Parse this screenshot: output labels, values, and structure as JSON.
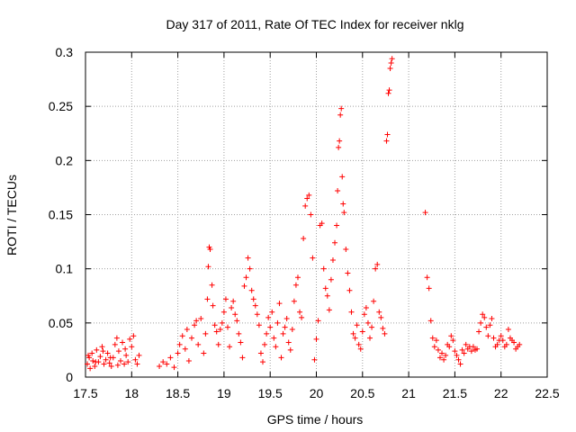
{
  "chart_data": {
    "type": "scatter",
    "title": "Day 317 of 2011, Rate Of TEC Index for receiver nklg",
    "xlabel": "GPS time / hours",
    "ylabel": "ROTI / TECUs",
    "xlim": [
      17.5,
      22.5
    ],
    "ylim": [
      0,
      0.3
    ],
    "xticks": [
      "17.5",
      "18",
      "18.5",
      "19",
      "19.5",
      "20",
      "20.5",
      "21",
      "21.5",
      "22",
      "22.5"
    ],
    "yticks": [
      "0",
      "0.05",
      "0.1",
      "0.15",
      "0.2",
      "0.25",
      "0.3"
    ],
    "grid": true,
    "marker": "+",
    "color": "#ff0000",
    "series": [
      {
        "name": "ROTI",
        "points": [
          [
            17.52,
            0.012
          ],
          [
            17.54,
            0.018
          ],
          [
            17.55,
            0.008
          ],
          [
            17.57,
            0.022
          ],
          [
            17.58,
            0.015
          ],
          [
            17.6,
            0.01
          ],
          [
            17.62,
            0.025
          ],
          [
            17.64,
            0.014
          ],
          [
            17.66,
            0.019
          ],
          [
            17.68,
            0.028
          ],
          [
            17.7,
            0.012
          ],
          [
            17.72,
            0.016
          ],
          [
            17.74,
            0.022
          ],
          [
            17.76,
            0.013
          ],
          [
            17.78,
            0.01
          ],
          [
            17.8,
            0.018
          ],
          [
            17.82,
            0.03
          ],
          [
            17.84,
            0.036
          ],
          [
            17.86,
            0.024
          ],
          [
            17.88,
            0.015
          ],
          [
            17.9,
            0.032
          ],
          [
            17.92,
            0.012
          ],
          [
            17.94,
            0.02
          ],
          [
            17.96,
            0.014
          ],
          [
            17.98,
            0.035
          ],
          [
            18.0,
            0.028
          ],
          [
            18.02,
            0.038
          ],
          [
            18.04,
            0.016
          ],
          [
            18.06,
            0.012
          ],
          [
            18.08,
            0.02
          ],
          [
            17.53,
            0.02
          ],
          [
            17.61,
            0.014
          ],
          [
            17.69,
            0.024
          ],
          [
            17.77,
            0.018
          ],
          [
            17.85,
            0.011
          ],
          [
            17.93,
            0.026
          ],
          [
            18.3,
            0.01
          ],
          [
            18.34,
            0.014
          ],
          [
            18.38,
            0.012
          ],
          [
            18.42,
            0.018
          ],
          [
            18.46,
            0.009
          ],
          [
            18.5,
            0.022
          ],
          [
            18.52,
            0.03
          ],
          [
            18.55,
            0.038
          ],
          [
            18.58,
            0.026
          ],
          [
            18.6,
            0.044
          ],
          [
            18.62,
            0.015
          ],
          [
            18.65,
            0.036
          ],
          [
            18.68,
            0.048
          ],
          [
            18.7,
            0.052
          ],
          [
            18.72,
            0.03
          ],
          [
            18.75,
            0.054
          ],
          [
            18.78,
            0.022
          ],
          [
            18.8,
            0.04
          ],
          [
            18.82,
            0.072
          ],
          [
            18.83,
            0.102
          ],
          [
            18.84,
            0.12
          ],
          [
            18.85,
            0.118
          ],
          [
            18.87,
            0.085
          ],
          [
            18.88,
            0.066
          ],
          [
            18.9,
            0.048
          ],
          [
            18.92,
            0.042
          ],
          [
            18.94,
            0.03
          ],
          [
            18.96,
            0.044
          ],
          [
            18.98,
            0.05
          ],
          [
            19.0,
            0.06
          ],
          [
            19.02,
            0.072
          ],
          [
            19.04,
            0.046
          ],
          [
            19.06,
            0.028
          ],
          [
            19.08,
            0.064
          ],
          [
            19.1,
            0.07
          ],
          [
            19.12,
            0.058
          ],
          [
            19.14,
            0.052
          ],
          [
            19.16,
            0.04
          ],
          [
            19.18,
            0.032
          ],
          [
            19.2,
            0.018
          ],
          [
            19.22,
            0.084
          ],
          [
            19.24,
            0.092
          ],
          [
            19.26,
            0.11
          ],
          [
            19.28,
            0.1
          ],
          [
            19.3,
            0.08
          ],
          [
            19.32,
            0.072
          ],
          [
            19.34,
            0.066
          ],
          [
            19.36,
            0.058
          ],
          [
            19.38,
            0.048
          ],
          [
            19.4,
            0.022
          ],
          [
            19.42,
            0.014
          ],
          [
            19.44,
            0.03
          ],
          [
            19.46,
            0.04
          ],
          [
            19.48,
            0.055
          ],
          [
            19.5,
            0.046
          ],
          [
            19.52,
            0.06
          ],
          [
            19.54,
            0.036
          ],
          [
            19.56,
            0.028
          ],
          [
            19.58,
            0.05
          ],
          [
            19.6,
            0.068
          ],
          [
            19.62,
            0.018
          ],
          [
            19.64,
            0.04
          ],
          [
            19.66,
            0.046
          ],
          [
            19.68,
            0.054
          ],
          [
            19.7,
            0.032
          ],
          [
            19.72,
            0.025
          ],
          [
            19.74,
            0.044
          ],
          [
            19.76,
            0.07
          ],
          [
            19.78,
            0.085
          ],
          [
            19.8,
            0.092
          ],
          [
            19.82,
            0.06
          ],
          [
            19.84,
            0.055
          ],
          [
            19.86,
            0.128
          ],
          [
            19.88,
            0.158
          ],
          [
            19.9,
            0.165
          ],
          [
            19.92,
            0.168
          ],
          [
            19.94,
            0.15
          ],
          [
            19.96,
            0.11
          ],
          [
            19.98,
            0.016
          ],
          [
            20.0,
            0.035
          ],
          [
            20.02,
            0.052
          ],
          [
            20.04,
            0.14
          ],
          [
            20.06,
            0.142
          ],
          [
            20.08,
            0.1
          ],
          [
            20.1,
            0.082
          ],
          [
            20.12,
            0.075
          ],
          [
            20.14,
            0.062
          ],
          [
            20.16,
            0.09
          ],
          [
            20.18,
            0.108
          ],
          [
            20.2,
            0.124
          ],
          [
            20.22,
            0.14
          ],
          [
            20.23,
            0.172
          ],
          [
            20.24,
            0.212
          ],
          [
            20.25,
            0.218
          ],
          [
            20.26,
            0.242
          ],
          [
            20.27,
            0.248
          ],
          [
            20.28,
            0.185
          ],
          [
            20.29,
            0.16
          ],
          [
            20.3,
            0.152
          ],
          [
            20.32,
            0.118
          ],
          [
            20.34,
            0.096
          ],
          [
            20.36,
            0.08
          ],
          [
            20.38,
            0.06
          ],
          [
            20.4,
            0.04
          ],
          [
            20.42,
            0.036
          ],
          [
            20.44,
            0.048
          ],
          [
            20.46,
            0.03
          ],
          [
            20.48,
            0.026
          ],
          [
            20.5,
            0.042
          ],
          [
            20.52,
            0.058
          ],
          [
            20.54,
            0.064
          ],
          [
            20.56,
            0.05
          ],
          [
            20.58,
            0.036
          ],
          [
            20.6,
            0.046
          ],
          [
            20.62,
            0.07
          ],
          [
            20.64,
            0.1
          ],
          [
            20.66,
            0.104
          ],
          [
            20.68,
            0.06
          ],
          [
            20.7,
            0.055
          ],
          [
            20.72,
            0.045
          ],
          [
            20.74,
            0.04
          ],
          [
            20.76,
            0.218
          ],
          [
            20.77,
            0.224
          ],
          [
            20.78,
            0.262
          ],
          [
            20.79,
            0.265
          ],
          [
            20.8,
            0.285
          ],
          [
            20.81,
            0.29
          ],
          [
            20.82,
            0.294
          ],
          [
            21.18,
            0.152
          ],
          [
            21.2,
            0.092
          ],
          [
            21.22,
            0.082
          ],
          [
            21.24,
            0.052
          ],
          [
            21.26,
            0.036
          ],
          [
            21.28,
            0.028
          ],
          [
            21.3,
            0.034
          ],
          [
            21.32,
            0.025
          ],
          [
            21.34,
            0.018
          ],
          [
            21.36,
            0.022
          ],
          [
            21.38,
            0.016
          ],
          [
            21.4,
            0.02
          ],
          [
            21.42,
            0.03
          ],
          [
            21.44,
            0.028
          ],
          [
            21.46,
            0.038
          ],
          [
            21.48,
            0.034
          ],
          [
            21.5,
            0.024
          ],
          [
            21.52,
            0.02
          ],
          [
            21.54,
            0.016
          ],
          [
            21.56,
            0.012
          ],
          [
            21.58,
            0.025
          ],
          [
            21.6,
            0.022
          ],
          [
            21.62,
            0.03
          ],
          [
            21.64,
            0.026
          ],
          [
            21.66,
            0.028
          ],
          [
            21.68,
            0.024
          ],
          [
            21.7,
            0.028
          ],
          [
            21.72,
            0.025
          ],
          [
            21.74,
            0.026
          ],
          [
            21.76,
            0.042
          ],
          [
            21.78,
            0.05
          ],
          [
            21.8,
            0.058
          ],
          [
            21.82,
            0.055
          ],
          [
            21.84,
            0.046
          ],
          [
            21.86,
            0.038
          ],
          [
            21.88,
            0.048
          ],
          [
            21.9,
            0.054
          ],
          [
            21.92,
            0.036
          ],
          [
            21.94,
            0.028
          ],
          [
            21.96,
            0.03
          ],
          [
            21.98,
            0.034
          ],
          [
            22.0,
            0.038
          ],
          [
            22.02,
            0.034
          ],
          [
            22.04,
            0.028
          ],
          [
            22.06,
            0.03
          ],
          [
            22.08,
            0.044
          ],
          [
            22.1,
            0.036
          ],
          [
            22.12,
            0.034
          ],
          [
            22.14,
            0.032
          ],
          [
            22.16,
            0.026
          ],
          [
            22.18,
            0.028
          ],
          [
            22.2,
            0.03
          ]
        ]
      }
    ]
  }
}
